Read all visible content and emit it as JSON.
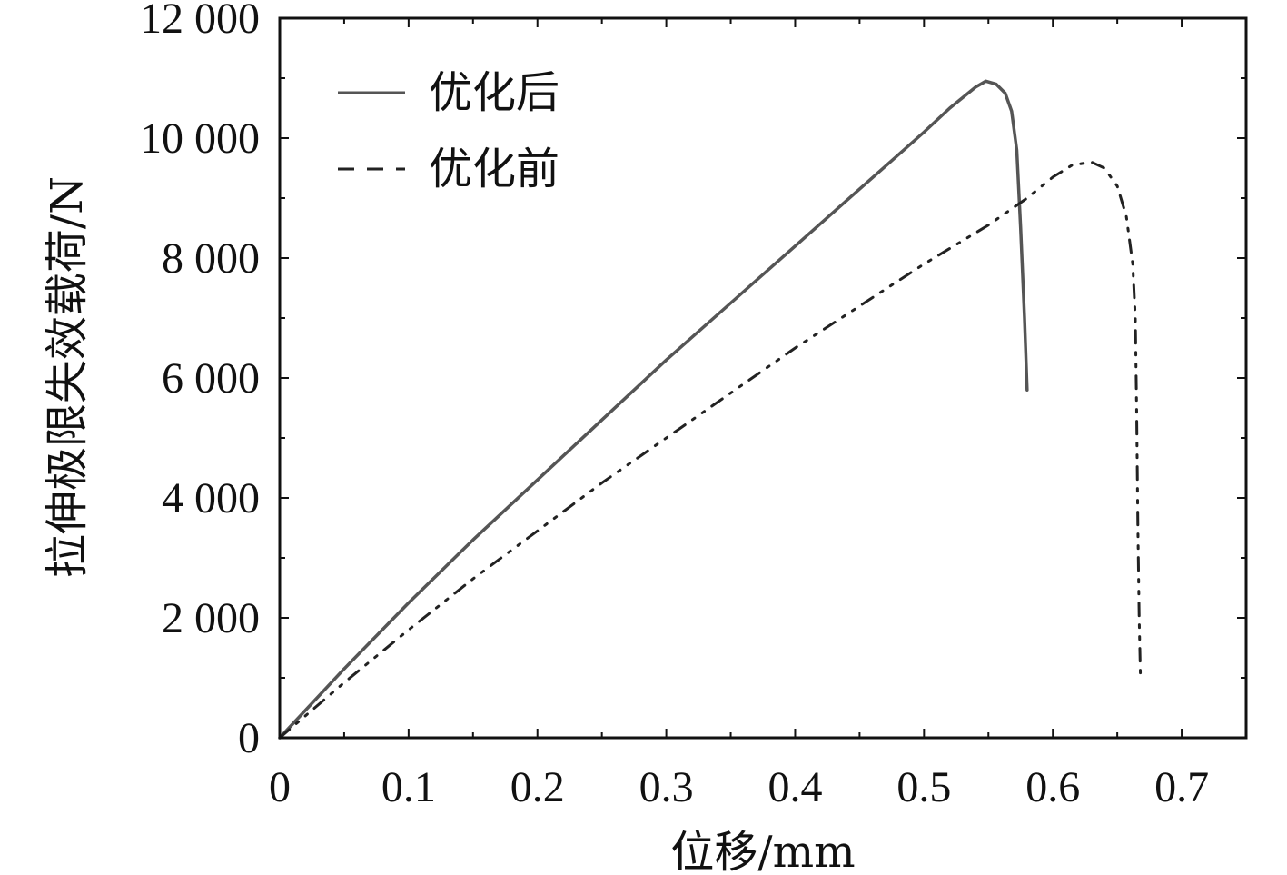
{
  "chart_data": {
    "type": "line",
    "title": "",
    "xlabel": "位移/mm",
    "ylabel": "拉伸极限失效载荷/N",
    "xlim": [
      0,
      0.75
    ],
    "ylim": [
      0,
      12000
    ],
    "x_ticks": [
      0,
      0.1,
      0.2,
      0.3,
      0.4,
      0.5,
      0.6,
      0.7
    ],
    "x_tick_labels": [
      "0",
      "0.1",
      "0.2",
      "0.3",
      "0.4",
      "0.5",
      "0.6",
      "0.7"
    ],
    "y_ticks": [
      0,
      2000,
      4000,
      6000,
      8000,
      10000,
      12000
    ],
    "y_tick_labels": [
      "0",
      "2 000",
      "4 000",
      "6 000",
      "8 000",
      "10 000",
      "12 000"
    ],
    "grid": false,
    "legend_position": "top-left",
    "series": [
      {
        "name": "优化后",
        "style": "solid",
        "color": "#555555",
        "points": [
          [
            0,
            0
          ],
          [
            0.05,
            1150
          ],
          [
            0.1,
            2250
          ],
          [
            0.15,
            3300
          ],
          [
            0.2,
            4300
          ],
          [
            0.25,
            5300
          ],
          [
            0.3,
            6300
          ],
          [
            0.35,
            7250
          ],
          [
            0.4,
            8200
          ],
          [
            0.45,
            9150
          ],
          [
            0.5,
            10100
          ],
          [
            0.52,
            10500
          ],
          [
            0.54,
            10850
          ],
          [
            0.548,
            10950
          ],
          [
            0.556,
            10900
          ],
          [
            0.563,
            10750
          ],
          [
            0.568,
            10450
          ],
          [
            0.572,
            9800
          ],
          [
            0.575,
            8500
          ],
          [
            0.578,
            7000
          ],
          [
            0.58,
            5800
          ]
        ]
      },
      {
        "name": "优化前",
        "style": "dashed",
        "color": "#222222",
        "points": [
          [
            0,
            0
          ],
          [
            0.05,
            920
          ],
          [
            0.1,
            1800
          ],
          [
            0.15,
            2650
          ],
          [
            0.2,
            3450
          ],
          [
            0.25,
            4250
          ],
          [
            0.3,
            5000
          ],
          [
            0.35,
            5750
          ],
          [
            0.4,
            6500
          ],
          [
            0.45,
            7200
          ],
          [
            0.5,
            7900
          ],
          [
            0.55,
            8550
          ],
          [
            0.58,
            9000
          ],
          [
            0.6,
            9350
          ],
          [
            0.615,
            9550
          ],
          [
            0.63,
            9600
          ],
          [
            0.64,
            9500
          ],
          [
            0.65,
            9200
          ],
          [
            0.657,
            8700
          ],
          [
            0.662,
            7900
          ],
          [
            0.664,
            7000
          ],
          [
            0.665,
            5500
          ],
          [
            0.666,
            3500
          ],
          [
            0.667,
            2000
          ],
          [
            0.668,
            1000
          ]
        ]
      }
    ]
  }
}
